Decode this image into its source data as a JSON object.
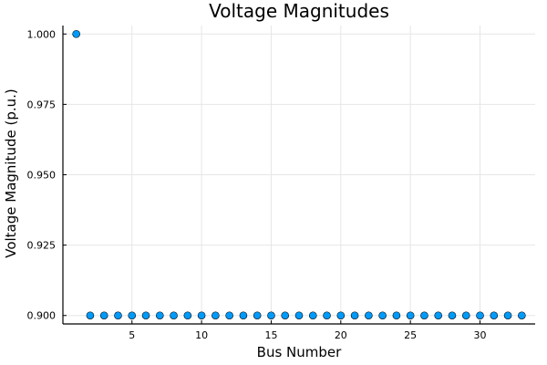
{
  "chart_data": {
    "type": "scatter",
    "title": "Voltage Magnitudes",
    "xlabel": "Bus Number",
    "ylabel": "Voltage Magnitude (p.u.)",
    "xlim": [
      0.04,
      33.96
    ],
    "ylim": [
      0.897,
      1.003
    ],
    "xticks": [
      5,
      10,
      15,
      20,
      25,
      30
    ],
    "yticks": [
      0.9,
      0.925,
      0.95,
      0.975,
      1.0
    ],
    "yticklabels": [
      "0.900",
      "0.925",
      "0.950",
      "0.975",
      "1.000"
    ],
    "grid": true,
    "legend": "none",
    "marker_color": "#009AFA",
    "x": [
      1,
      2,
      3,
      4,
      5,
      6,
      7,
      8,
      9,
      10,
      11,
      12,
      13,
      14,
      15,
      16,
      17,
      18,
      19,
      20,
      21,
      22,
      23,
      24,
      25,
      26,
      27,
      28,
      29,
      30,
      31,
      32,
      33
    ],
    "y": [
      1.0,
      0.9,
      0.9,
      0.9,
      0.9,
      0.9,
      0.9,
      0.9,
      0.9,
      0.9,
      0.9,
      0.9,
      0.9,
      0.9,
      0.9,
      0.9,
      0.9,
      0.9,
      0.9,
      0.9,
      0.9,
      0.9,
      0.9,
      0.9,
      0.9,
      0.9,
      0.9,
      0.9,
      0.9,
      0.9,
      0.9,
      0.9,
      0.9
    ]
  }
}
